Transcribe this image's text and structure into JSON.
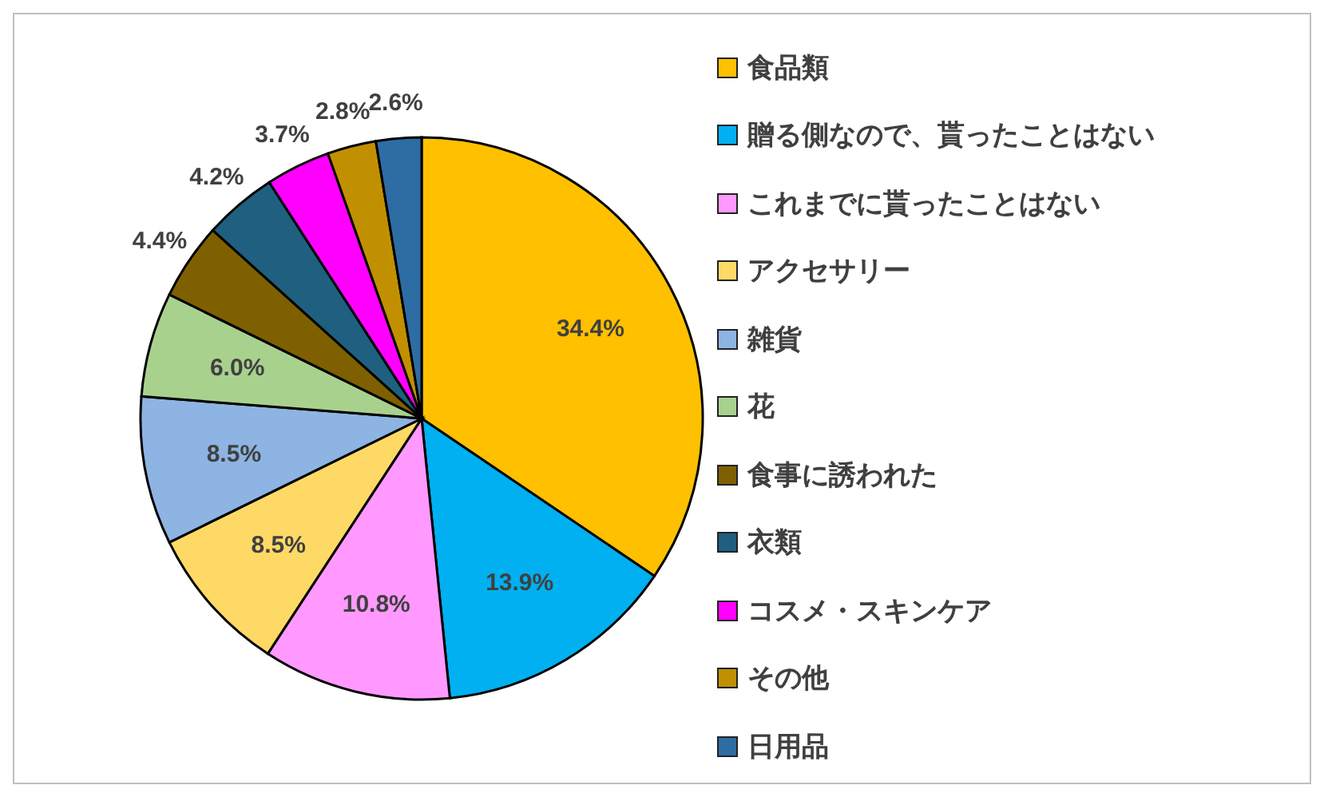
{
  "chart_data": {
    "type": "pie",
    "categories": [
      "食品類",
      "贈る側なので、貰ったことはない",
      "これまでに貰ったことはない",
      "アクセサリー",
      "雑貨",
      "花",
      "食事に誘われた",
      "衣類",
      "コスメ・スキンケア",
      "その他",
      "日用品"
    ],
    "values": [
      34.4,
      13.9,
      10.8,
      8.5,
      8.5,
      6.0,
      4.4,
      4.2,
      3.7,
      2.8,
      2.6
    ],
    "colors": [
      "#ffc000",
      "#00b0f0",
      "#ff99ff",
      "#ffd966",
      "#8db4e2",
      "#a9d18e",
      "#7f6000",
      "#1f5f7f",
      "#ff00ff",
      "#c09000",
      "#2e6da4"
    ],
    "value_labels": [
      "34.4%",
      "13.9%",
      "10.8%",
      "8.5%",
      "8.5%",
      "6.0%",
      "4.4%",
      "4.2%",
      "3.7%",
      "2.8%",
      "2.6%"
    ],
    "legend": "right"
  }
}
